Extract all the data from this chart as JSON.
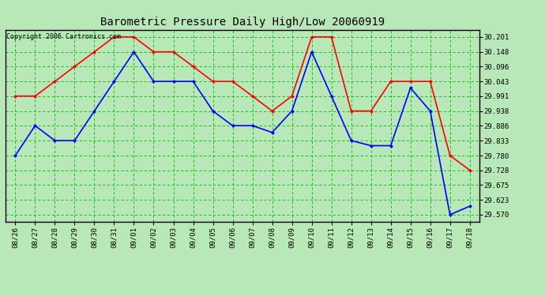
{
  "title": "Barometric Pressure Daily High/Low 20060919",
  "copyright": "Copyright 2006 Cartronics.com",
  "dates": [
    "08/26",
    "08/27",
    "08/28",
    "08/29",
    "08/30",
    "08/31",
    "09/01",
    "09/02",
    "09/03",
    "09/04",
    "09/05",
    "09/06",
    "09/07",
    "09/08",
    "09/09",
    "09/10",
    "09/11",
    "09/12",
    "09/13",
    "09/14",
    "09/15",
    "09/16",
    "09/17",
    "09/18"
  ],
  "high": [
    29.991,
    29.991,
    30.043,
    30.096,
    30.148,
    30.201,
    30.201,
    30.148,
    30.148,
    30.096,
    30.043,
    30.043,
    29.991,
    29.938,
    29.991,
    30.201,
    30.201,
    29.938,
    29.938,
    30.043,
    30.043,
    30.043,
    29.78,
    29.728
  ],
  "low": [
    29.78,
    29.886,
    29.833,
    29.833,
    29.938,
    30.043,
    30.148,
    30.043,
    30.043,
    30.043,
    29.938,
    29.886,
    29.886,
    29.862,
    29.938,
    30.148,
    29.991,
    29.833,
    29.815,
    29.815,
    30.02,
    29.938,
    29.57,
    29.6
  ],
  "yticks": [
    29.57,
    29.623,
    29.675,
    29.728,
    29.78,
    29.833,
    29.886,
    29.938,
    29.991,
    30.043,
    30.096,
    30.148,
    30.201
  ],
  "bg_color": "#b8e8b8",
  "grid_color": "#00bb00",
  "high_color": "red",
  "low_color": "blue",
  "title_color": "black",
  "copyright_color": "black",
  "border_color": "black",
  "ymin": 29.544,
  "ymax": 30.227,
  "title_fontsize": 10,
  "tick_fontsize": 6.5,
  "copyright_fontsize": 6
}
